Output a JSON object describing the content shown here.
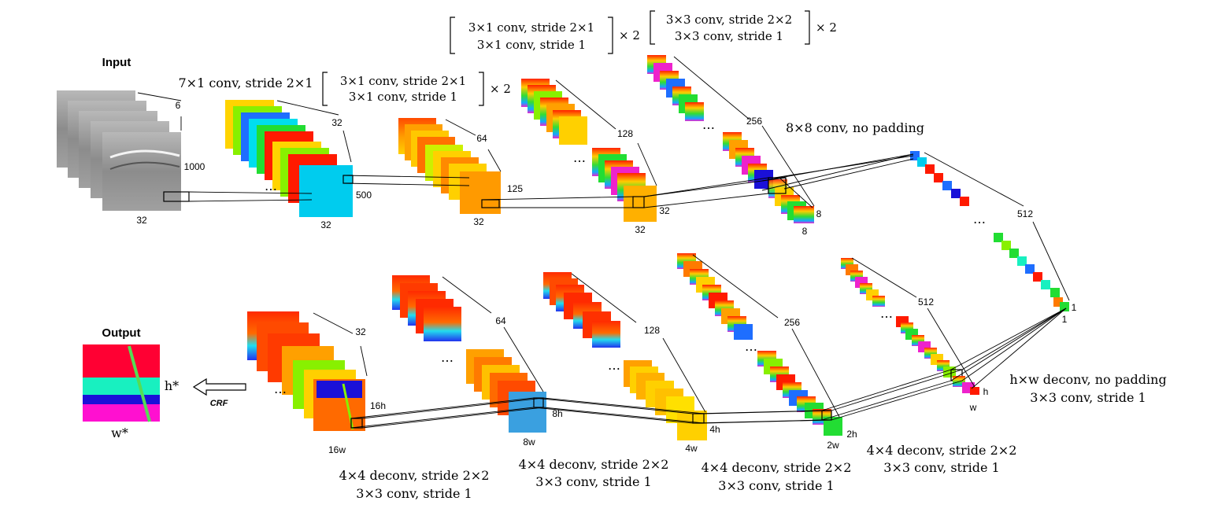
{
  "input_title": "Input",
  "output_title": "Output",
  "crf_label": "CRF",
  "encoder": {
    "input_dims": [
      "6",
      "1000",
      "32"
    ],
    "stage1": {
      "label": "7×1 conv, stride 2×1",
      "dims": [
        "32",
        "500",
        "32"
      ]
    },
    "stage2": {
      "line1": "3×1 conv, stride 2×1",
      "line2": "3×1 conv, stride 1",
      "repeat": "× 2",
      "dims": [
        "64",
        "125",
        "32"
      ]
    },
    "stage3": {
      "line1": "3×1 conv, stride 2×1",
      "line2": "3×1 conv, stride 1",
      "repeat": "× 2",
      "dims": [
        "128",
        "32",
        "32"
      ]
    },
    "stage4": {
      "line1": "3×3 conv, stride 2×2",
      "line2": "3×3 conv, stride 1",
      "repeat": "× 2",
      "dims": [
        "256",
        "8",
        "8"
      ]
    },
    "stage5": {
      "label": "8×8 conv, no padding",
      "dims": [
        "512",
        "1",
        "1"
      ]
    }
  },
  "decoder": {
    "stage1": {
      "line1": "h×w deconv, no padding",
      "line2": "3×3 conv, stride 1",
      "dims": [
        "512",
        "h",
        "w"
      ]
    },
    "stage2": {
      "line1": "4×4 deconv, stride 2×2",
      "line2": "3×3 conv, stride 1",
      "dims": [
        "256",
        "2h",
        "2w"
      ]
    },
    "stage3": {
      "line1": "4×4 deconv, stride 2×2",
      "line2": "3×3 conv, stride 1",
      "dims": [
        "128",
        "4h",
        "4w"
      ]
    },
    "stage4": {
      "line1": "4×4 deconv, stride 2×2",
      "line2": "3×3 conv, stride 1",
      "dims": [
        "64",
        "8h",
        "8w"
      ]
    },
    "stage5": {
      "line1": "4×4 deconv, stride 2×2",
      "line2": "3×3 conv, stride 1",
      "dims": [
        "32",
        "16h",
        "16w"
      ]
    }
  },
  "output_dims": [
    "h*",
    "w*"
  ],
  "ellipsis": "…",
  "colors": {
    "red": "#ff1a00",
    "orange": "#ff7a00",
    "yellow": "#ffd400",
    "lime": "#88f000",
    "green": "#22dd33",
    "cyan": "#00ddee",
    "teal": "#18f0c0",
    "blue": "#1e6eff",
    "navy": "#1a10d8",
    "magenta": "#ff10d0",
    "gray": "#8a8a8a"
  }
}
